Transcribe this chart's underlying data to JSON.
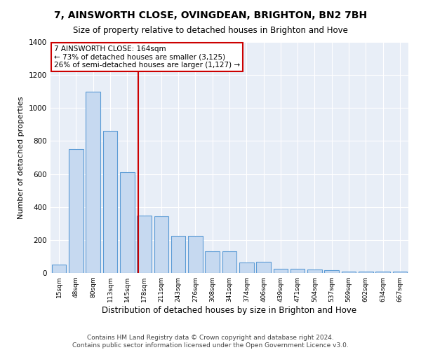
{
  "title": "7, AINSWORTH CLOSE, OVINGDEAN, BRIGHTON, BN2 7BH",
  "subtitle": "Size of property relative to detached houses in Brighton and Hove",
  "xlabel": "Distribution of detached houses by size in Brighton and Hove",
  "ylabel": "Number of detached properties",
  "categories": [
    "15sqm",
    "48sqm",
    "80sqm",
    "113sqm",
    "145sqm",
    "178sqm",
    "211sqm",
    "243sqm",
    "276sqm",
    "308sqm",
    "341sqm",
    "374sqm",
    "406sqm",
    "439sqm",
    "471sqm",
    "504sqm",
    "537sqm",
    "569sqm",
    "602sqm",
    "634sqm",
    "667sqm"
  ],
  "values": [
    50,
    750,
    1100,
    860,
    610,
    350,
    345,
    225,
    225,
    130,
    130,
    65,
    70,
    25,
    25,
    20,
    15,
    10,
    10,
    8,
    10
  ],
  "bar_color": "#c6d9f0",
  "bar_edge_color": "#5b9bd5",
  "property_line_x": 4.65,
  "property_line_color": "#cc0000",
  "annotation_line1": "7 AINSWORTH CLOSE: 164sqm",
  "annotation_line2": "← 73% of detached houses are smaller (3,125)",
  "annotation_line3": "26% of semi-detached houses are larger (1,127) →",
  "annotation_box_color": "#cc0000",
  "ylim": [
    0,
    1400
  ],
  "yticks": [
    0,
    200,
    400,
    600,
    800,
    1000,
    1200,
    1400
  ],
  "background_color": "#e8eef7",
  "grid_color": "#ffffff",
  "footer": "Contains HM Land Registry data © Crown copyright and database right 2024.\nContains public sector information licensed under the Open Government Licence v3.0.",
  "title_fontsize": 10,
  "subtitle_fontsize": 8.5,
  "xlabel_fontsize": 8.5,
  "ylabel_fontsize": 8,
  "annotation_fontsize": 7.5,
  "footer_fontsize": 6.5
}
